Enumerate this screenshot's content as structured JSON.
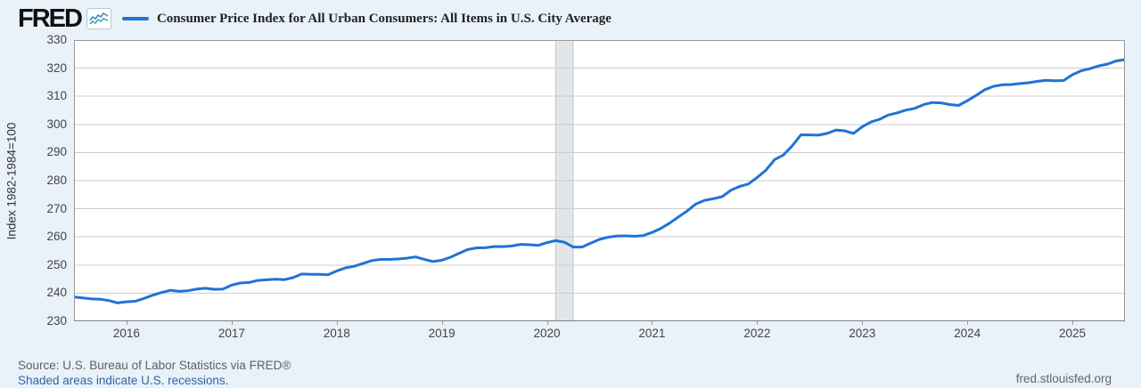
{
  "header": {
    "logo_text": "FRED",
    "legend": {
      "swatch_color": "#1f73d5",
      "label": "Consumer Price Index for All Urban Consumers: All Items in U.S. City Average"
    }
  },
  "footer": {
    "source": "Source: U.S. Bureau of Labor Statistics via FRED®",
    "recession_note": "Shaded areas indicate U.S. recessions.",
    "site": "fred.stlouisfed.org"
  },
  "colors": {
    "background": "#e9f1f9",
    "plot_bg": "#ffffff",
    "grid": "#cccccc",
    "plot_border": "#999999",
    "axis_bottom": "#808080",
    "line": "#1f73d5",
    "recession_fill": "#e2e6e9",
    "recession_edge": "#c2c7cb",
    "spark_blue": "#4a84c4",
    "spark_teal": "#3fae9e"
  },
  "chart_data": {
    "type": "line",
    "title": "Consumer Price Index for All Urban Consumers: All Items in U.S. City Average",
    "ylabel": "Index 1982-1984=100",
    "ylim": [
      230,
      330
    ],
    "y_ticks": [
      230,
      240,
      250,
      260,
      270,
      280,
      290,
      300,
      310,
      320,
      330
    ],
    "x_tick_years": [
      2016,
      2017,
      2018,
      2019,
      2020,
      2021,
      2022,
      2023,
      2024,
      2025
    ],
    "grid": "horizontal",
    "legend_position": "top-left",
    "frequency": "monthly",
    "start_month": "2015-07",
    "recessions": [
      {
        "start": "2020-02",
        "end": "2020-04"
      }
    ],
    "series": [
      {
        "name": "Consumer Price Index for All Urban Consumers: All Items in U.S. City Average",
        "units": "Index 1982-1984=100",
        "values": [
          238.654,
          238.316,
          237.945,
          237.838,
          237.336,
          236.525,
          236.916,
          237.111,
          238.132,
          239.261,
          240.229,
          241.018,
          240.628,
          240.849,
          241.428,
          241.729,
          241.353,
          241.432,
          242.839,
          243.603,
          243.801,
          244.524,
          244.733,
          244.955,
          244.786,
          245.519,
          246.819,
          246.663,
          246.669,
          246.524,
          247.867,
          248.991,
          249.554,
          250.546,
          251.588,
          251.989,
          252.006,
          252.146,
          252.439,
          252.885,
          252.038,
          251.233,
          251.712,
          252.776,
          254.202,
          255.548,
          256.092,
          256.143,
          256.571,
          256.558,
          256.759,
          257.346,
          257.208,
          256.974,
          257.971,
          258.678,
          258.115,
          256.389,
          256.394,
          257.797,
          259.101,
          259.918,
          260.28,
          260.388,
          260.229,
          260.474,
          261.582,
          263.014,
          264.877,
          267.054,
          269.195,
          271.696,
          273.003,
          273.567,
          274.31,
          276.589,
          277.948,
          278.802,
          281.148,
          283.716,
          287.504,
          289.109,
          292.296,
          296.311,
          296.276,
          296.171,
          296.808,
          298.012,
          297.711,
          296.797,
          299.17,
          300.84,
          301.836,
          303.363,
          304.127,
          305.109,
          305.691,
          307.026,
          307.789,
          307.671,
          307.051,
          306.746,
          308.417,
          310.326,
          312.332,
          313.548,
          314.069,
          314.175,
          314.54,
          314.796,
          315.301,
          315.664,
          315.493,
          315.605,
          317.671,
          319.082,
          319.799,
          320.795,
          321.465,
          322.561,
          323.048
        ]
      }
    ]
  }
}
